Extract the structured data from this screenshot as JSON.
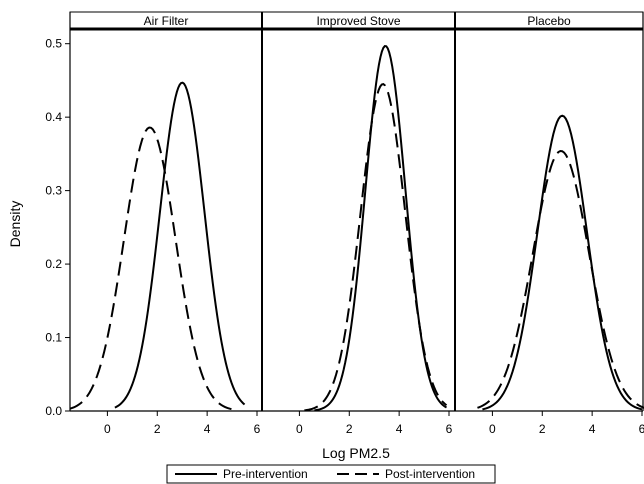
{
  "chart_data": {
    "type": "line",
    "xlabel": "Log PM2.5",
    "ylabel": "Density",
    "xlim": [
      -1.5,
      6.2
    ],
    "ylim": [
      0,
      0.52
    ],
    "x_ticks": [
      0,
      2,
      4,
      6
    ],
    "y_ticks": [
      0.0,
      0.1,
      0.2,
      0.3,
      0.4,
      0.5
    ],
    "y_tick_labels": [
      "0.0",
      "0.1",
      "0.2",
      "0.3",
      "0.4",
      "0.5"
    ],
    "grid": false,
    "legend_position": "bottom",
    "legend": [
      {
        "label": "Pre-intervention",
        "style": "solid"
      },
      {
        "label": "Post-intervention",
        "style": "dashed"
      }
    ],
    "panels": [
      {
        "title": "Air Filter",
        "series": [
          {
            "name": "Pre-intervention",
            "style": "solid",
            "mean": 3.0,
            "peak": 0.447,
            "support": [
              0.3,
              5.5
            ]
          },
          {
            "name": "Post-intervention",
            "style": "dashed",
            "mean": 1.7,
            "peak": 0.386,
            "support": [
              -1.5,
              5.0
            ]
          }
        ]
      },
      {
        "title": "Improved Stove",
        "series": [
          {
            "name": "Pre-intervention",
            "style": "solid",
            "mean": 3.45,
            "peak": 0.497,
            "support": [
              0.6,
              5.9
            ]
          },
          {
            "name": "Post-intervention",
            "style": "dashed",
            "mean": 3.35,
            "peak": 0.445,
            "support": [
              0.2,
              5.9
            ]
          }
        ]
      },
      {
        "title": "Placebo",
        "series": [
          {
            "name": "Pre-intervention",
            "style": "solid",
            "mean": 2.8,
            "peak": 0.402,
            "support": [
              -0.4,
              6.0
            ]
          },
          {
            "name": "Post-intervention",
            "style": "dashed",
            "mean": 2.75,
            "peak": 0.354,
            "support": [
              -0.6,
              6.2
            ]
          }
        ]
      }
    ]
  }
}
